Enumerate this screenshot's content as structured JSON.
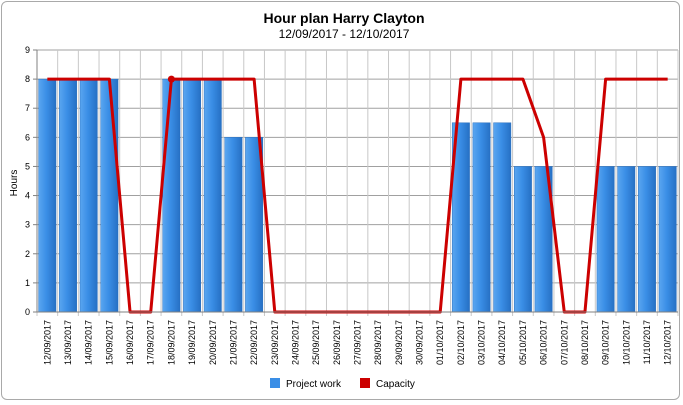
{
  "chart_data": {
    "type": "bar",
    "title": "Hour plan Harry Clayton",
    "subtitle": "12/09/2017 - 12/10/2017",
    "xlabel": "",
    "ylabel": "Hours",
    "ylim": [
      0,
      9
    ],
    "yticks": [
      "0",
      "1",
      "2",
      "3",
      "4",
      "5",
      "6",
      "7",
      "8",
      "9"
    ],
    "grid": true,
    "legend_position": "bottom",
    "categories": [
      "12/09/2017",
      "13/09/2017",
      "14/09/2017",
      "15/09/2017",
      "16/09/2017",
      "17/09/2017",
      "18/09/2017",
      "19/09/2017",
      "20/09/2017",
      "21/09/2017",
      "22/09/2017",
      "23/09/2017",
      "24/09/2017",
      "25/09/2017",
      "26/09/2017",
      "27/09/2017",
      "28/09/2017",
      "29/09/2017",
      "30/09/2017",
      "01/10/2017",
      "02/10/2017",
      "03/10/2017",
      "04/10/2017",
      "05/10/2017",
      "06/10/2017",
      "07/10/2017",
      "08/10/2017",
      "09/10/2017",
      "10/10/2017",
      "11/10/2017",
      "12/10/2017"
    ],
    "series": [
      {
        "name": "Project work",
        "kind": "bar",
        "color": "#3a8ee6",
        "values": [
          8,
          8,
          8,
          8,
          0,
          0,
          8,
          8,
          8,
          6,
          6,
          0,
          0,
          0,
          0,
          0,
          0,
          0,
          0,
          0,
          6.5,
          6.5,
          6.5,
          5,
          5,
          0,
          0,
          5,
          5,
          5,
          5
        ]
      },
      {
        "name": "Capacity",
        "kind": "line",
        "color": "#cc0000",
        "values": [
          8,
          8,
          8,
          8,
          0,
          0,
          8,
          8,
          8,
          8,
          8,
          0,
          0,
          0,
          0,
          0,
          0,
          0,
          0,
          0,
          8,
          8,
          8,
          8,
          6,
          0,
          0,
          8,
          8,
          8,
          8
        ]
      }
    ]
  }
}
